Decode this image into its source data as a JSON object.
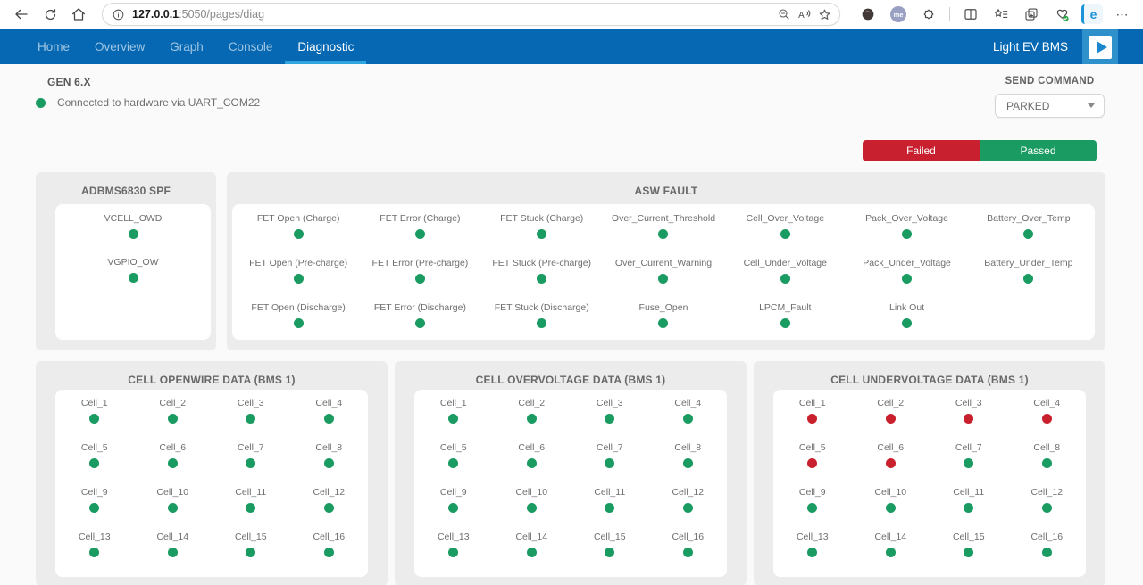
{
  "browser": {
    "url": {
      "host": "127.0.0.1",
      "rest": ":5050/pages/diag"
    },
    "avatar_text": "me",
    "more_label": "⋯"
  },
  "nav": {
    "tabs": [
      {
        "label": "Home"
      },
      {
        "label": "Overview"
      },
      {
        "label": "Graph"
      },
      {
        "label": "Console"
      },
      {
        "label": "Diagnostic"
      }
    ],
    "brand": "Light EV BMS"
  },
  "header": {
    "title": "GEN 6.X",
    "connection_status": "Connected to hardware via UART_COM22",
    "send_command_label": "SEND COMMAND",
    "send_command_value": "PARKED"
  },
  "legend": {
    "failed": "Failed",
    "passed": "Passed"
  },
  "colors": {
    "passed": "#1a9b61",
    "failed": "#c9202e",
    "navbar": "#0668b2",
    "active_underline": "#2ea5de"
  },
  "panels": {
    "spf": {
      "title": "ADBMS6830 SPF",
      "indicators": [
        {
          "label": "VCELL_OWD",
          "status": "passed"
        },
        {
          "label": "VGPIO_OW",
          "status": "passed"
        }
      ]
    },
    "asw": {
      "title": "ASW FAULT",
      "indicators": [
        {
          "label": "FET Open (Charge)",
          "status": "passed"
        },
        {
          "label": "FET Error (Charge)",
          "status": "passed"
        },
        {
          "label": "FET Stuck (Charge)",
          "status": "passed"
        },
        {
          "label": "Over_Current_Threshold",
          "status": "passed"
        },
        {
          "label": "Cell_Over_Voltage",
          "status": "passed"
        },
        {
          "label": "Pack_Over_Voltage",
          "status": "passed"
        },
        {
          "label": "Battery_Over_Temp",
          "status": "passed"
        },
        {
          "label": "FET Open (Pre-charge)",
          "status": "passed"
        },
        {
          "label": "FET Error (Pre-charge)",
          "status": "passed"
        },
        {
          "label": "FET Stuck (Pre-charge)",
          "status": "passed"
        },
        {
          "label": "Over_Current_Warning",
          "status": "passed"
        },
        {
          "label": "Cell_Under_Voltage",
          "status": "passed"
        },
        {
          "label": "Pack_Under_Voltage",
          "status": "passed"
        },
        {
          "label": "Battery_Under_Temp",
          "status": "passed"
        },
        {
          "label": "FET Open (Discharge)",
          "status": "passed"
        },
        {
          "label": "FET Error (Discharge)",
          "status": "passed"
        },
        {
          "label": "FET Stuck (Discharge)",
          "status": "passed"
        },
        {
          "label": "Fuse_Open",
          "status": "passed"
        },
        {
          "label": "LPCM_Fault",
          "status": "passed"
        },
        {
          "label": "Link Out",
          "status": "passed"
        }
      ]
    },
    "openwire": {
      "title": "CELL OPENWIRE DATA (BMS 1)",
      "indicators": [
        {
          "label": "Cell_1",
          "status": "passed"
        },
        {
          "label": "Cell_2",
          "status": "passed"
        },
        {
          "label": "Cell_3",
          "status": "passed"
        },
        {
          "label": "Cell_4",
          "status": "passed"
        },
        {
          "label": "Cell_5",
          "status": "passed"
        },
        {
          "label": "Cell_6",
          "status": "passed"
        },
        {
          "label": "Cell_7",
          "status": "passed"
        },
        {
          "label": "Cell_8",
          "status": "passed"
        },
        {
          "label": "Cell_9",
          "status": "passed"
        },
        {
          "label": "Cell_10",
          "status": "passed"
        },
        {
          "label": "Cell_11",
          "status": "passed"
        },
        {
          "label": "Cell_12",
          "status": "passed"
        },
        {
          "label": "Cell_13",
          "status": "passed"
        },
        {
          "label": "Cell_14",
          "status": "passed"
        },
        {
          "label": "Cell_15",
          "status": "passed"
        },
        {
          "label": "Cell_16",
          "status": "passed"
        }
      ]
    },
    "overvoltage": {
      "title": "CELL OVERVOLTAGE DATA (BMS 1)",
      "indicators": [
        {
          "label": "Cell_1",
          "status": "passed"
        },
        {
          "label": "Cell_2",
          "status": "passed"
        },
        {
          "label": "Cell_3",
          "status": "passed"
        },
        {
          "label": "Cell_4",
          "status": "passed"
        },
        {
          "label": "Cell_5",
          "status": "passed"
        },
        {
          "label": "Cell_6",
          "status": "passed"
        },
        {
          "label": "Cell_7",
          "status": "passed"
        },
        {
          "label": "Cell_8",
          "status": "passed"
        },
        {
          "label": "Cell_9",
          "status": "passed"
        },
        {
          "label": "Cell_10",
          "status": "passed"
        },
        {
          "label": "Cell_11",
          "status": "passed"
        },
        {
          "label": "Cell_12",
          "status": "passed"
        },
        {
          "label": "Cell_13",
          "status": "passed"
        },
        {
          "label": "Cell_14",
          "status": "passed"
        },
        {
          "label": "Cell_15",
          "status": "passed"
        },
        {
          "label": "Cell_16",
          "status": "passed"
        }
      ]
    },
    "undervoltage": {
      "title": "CELL UNDERVOLTAGE DATA (BMS 1)",
      "indicators": [
        {
          "label": "Cell_1",
          "status": "failed"
        },
        {
          "label": "Cell_2",
          "status": "failed"
        },
        {
          "label": "Cell_3",
          "status": "failed"
        },
        {
          "label": "Cell_4",
          "status": "failed"
        },
        {
          "label": "Cell_5",
          "status": "failed"
        },
        {
          "label": "Cell_6",
          "status": "failed"
        },
        {
          "label": "Cell_7",
          "status": "passed"
        },
        {
          "label": "Cell_8",
          "status": "passed"
        },
        {
          "label": "Cell_9",
          "status": "passed"
        },
        {
          "label": "Cell_10",
          "status": "passed"
        },
        {
          "label": "Cell_11",
          "status": "passed"
        },
        {
          "label": "Cell_12",
          "status": "passed"
        },
        {
          "label": "Cell_13",
          "status": "passed"
        },
        {
          "label": "Cell_14",
          "status": "passed"
        },
        {
          "label": "Cell_15",
          "status": "passed"
        },
        {
          "label": "Cell_16",
          "status": "passed"
        }
      ]
    }
  }
}
